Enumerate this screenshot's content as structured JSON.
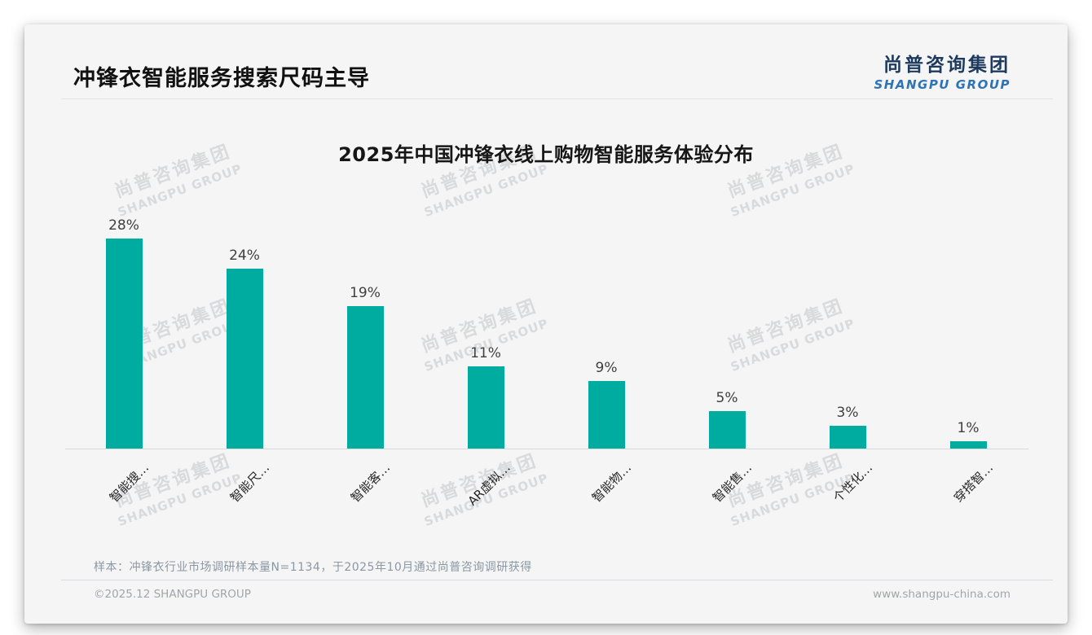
{
  "page": {
    "title": "冲锋衣智能服务搜索尺码主导",
    "logo": {
      "cn": "尚普咨询集团",
      "en": "SHANGPU GROUP"
    },
    "watermark": {
      "cn": "尚普咨询集团",
      "en": "SHANGPU GROUP"
    },
    "note": "样本：冲锋衣行业市场调研样本量N=1134，于2025年10月通过尚普咨询调研获得",
    "footer": {
      "left": "©2025.12 SHANGPU GROUP",
      "right": "www.shangpu-china.com"
    }
  },
  "chart_data": {
    "type": "bar",
    "title": "2025年中国冲锋衣线上购物智能服务体验分布",
    "categories": [
      "智能搜…",
      "智能尺…",
      "智能客…",
      "AR虚拟…",
      "智能物…",
      "智能售…",
      "个性化…",
      "穿搭智…"
    ],
    "values": [
      28,
      24,
      19,
      11,
      9,
      5,
      3,
      1
    ],
    "value_labels": [
      "28%",
      "24%",
      "19%",
      "11%",
      "9%",
      "5%",
      "3%",
      "1%"
    ],
    "bar_color": "#00aba0",
    "xlabel": "",
    "ylabel": "",
    "ylim": [
      0,
      30
    ],
    "grid": false,
    "legend": false,
    "value_labels_shown": true,
    "x_label_rotation_deg": 45
  }
}
